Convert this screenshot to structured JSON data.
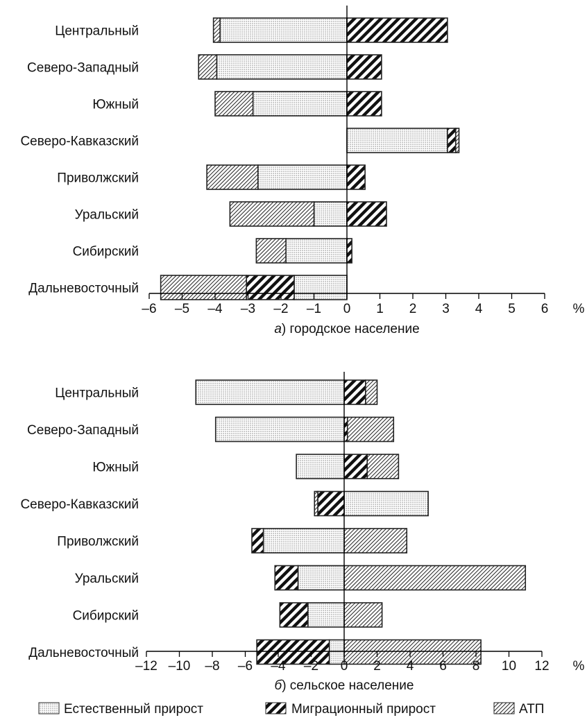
{
  "chart_data": [
    {
      "type": "bar",
      "orientation": "horizontal",
      "stacked": "diverging",
      "caption_letter": "а",
      "caption_text": ") городское население",
      "unit_label": "%",
      "xlim": [
        -6,
        6
      ],
      "ticks": [
        "–6",
        "–5",
        "–4",
        "–3",
        "–2",
        "–1",
        "0",
        "1",
        "2",
        "3",
        "4",
        "5",
        "6"
      ],
      "categories": [
        "Центральный",
        "Северо-Западный",
        "Южный",
        "Северо-Кавказский",
        "Приволжский",
        "Уральский",
        "Сибирский",
        "Дальневосточный"
      ],
      "series": [
        {
          "name": "Естественный прирост",
          "values": [
            -3.85,
            -3.95,
            -2.85,
            3.05,
            -2.7,
            -1.0,
            -1.85,
            -1.6
          ]
        },
        {
          "name": "Миграционный прирост",
          "values": [
            3.05,
            1.05,
            1.05,
            0.25,
            0.55,
            1.2,
            0.15,
            -1.45
          ]
        },
        {
          "name": "АТП",
          "values": [
            -0.2,
            -0.55,
            -1.15,
            0.1,
            -1.55,
            -2.55,
            -0.9,
            -2.6
          ]
        }
      ]
    },
    {
      "type": "bar",
      "orientation": "horizontal",
      "stacked": "diverging",
      "caption_letter": "б",
      "caption_text": ") сельское население",
      "unit_label": "%",
      "xlim": [
        -12,
        12
      ],
      "ticks": [
        "–12",
        "–10",
        "–8",
        "–6",
        "–4",
        "–2",
        "0",
        "2",
        "4",
        "6",
        "8",
        "10",
        "12"
      ],
      "categories": [
        "Центральный",
        "Северо-Западный",
        "Южный",
        "Северо-Кавказский",
        "Приволжский",
        "Уральский",
        "Сибирский",
        "Дальневосточный"
      ],
      "series": [
        {
          "name": "Естественный прирост",
          "values": [
            -9.0,
            -7.8,
            -2.9,
            5.1,
            -4.9,
            -2.8,
            -2.2,
            -0.9
          ]
        },
        {
          "name": "Миграционный прирост",
          "values": [
            1.3,
            0.2,
            1.4,
            -1.6,
            -0.7,
            -1.4,
            -1.7,
            -4.4
          ]
        },
        {
          "name": "АТП",
          "values": [
            0.7,
            2.8,
            1.9,
            -0.2,
            3.8,
            11.0,
            2.3,
            8.3
          ]
        }
      ]
    }
  ],
  "legend": [
    {
      "label": "Естественный прирост",
      "pattern": "dots"
    },
    {
      "label": "Миграционный прирост",
      "pattern": "thick-hatch"
    },
    {
      "label": "АТП",
      "pattern": "thin-hatch"
    }
  ]
}
